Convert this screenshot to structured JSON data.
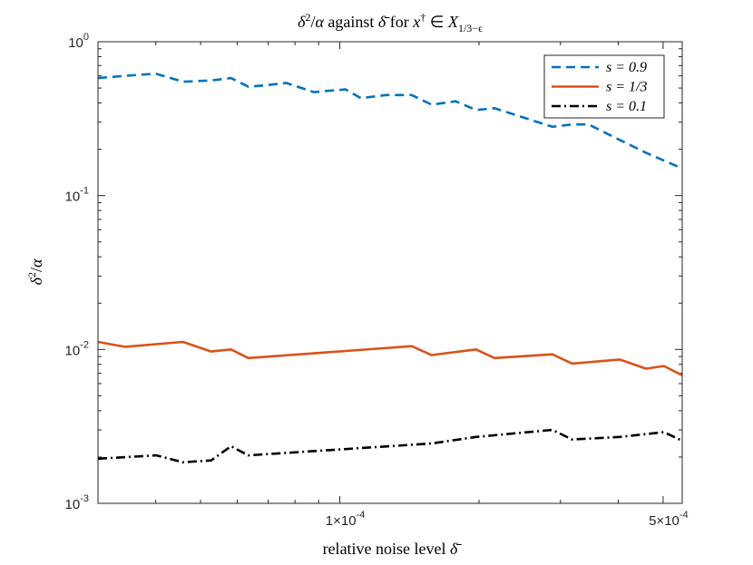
{
  "chart_data": {
    "type": "line",
    "title": "δ²/α against δ̄ for x† ∈ X1/3−ϵ",
    "xlabel": "relative noise level δ̄",
    "ylabel": "δ²/α",
    "xscale": "log",
    "yscale": "log",
    "xlim": [
      3e-05,
      0.00055
    ],
    "ylim": [
      0.001,
      1
    ],
    "x_ticks": [
      {
        "value": 0.0001,
        "label": "1×10",
        "exp": "-4"
      },
      {
        "value": 0.0005,
        "label": "5×10",
        "exp": "-4"
      }
    ],
    "y_ticks": [
      {
        "value": 1,
        "label": "10",
        "exp": "0"
      },
      {
        "value": 0.1,
        "label": "10",
        "exp": "-1"
      },
      {
        "value": 0.01,
        "label": "10",
        "exp": "-2"
      },
      {
        "value": 0.001,
        "label": "10",
        "exp": "-3"
      }
    ],
    "legend_position": "top-right",
    "series": [
      {
        "name": "s = 0.9",
        "color": "#0072BD",
        "style": "dashed",
        "x": [
          3e-05,
          3.43e-05,
          4e-05,
          4.58e-05,
          5.27e-05,
          5.82e-05,
          6.34e-05,
          6.87e-05,
          7.65e-05,
          8.79e-05,
          9.46e-05,
          0.000103,
          0.000111,
          0.000126,
          0.000143,
          0.000158,
          0.000178,
          0.000197,
          0.000216,
          0.000251,
          0.000288,
          0.000318,
          0.000345,
          0.000403,
          0.000459,
          0.00055
        ],
        "values": [
          0.58,
          0.6,
          0.62,
          0.55,
          0.56,
          0.58,
          0.51,
          0.52,
          0.54,
          0.47,
          0.48,
          0.49,
          0.43,
          0.45,
          0.45,
          0.39,
          0.41,
          0.36,
          0.37,
          0.32,
          0.28,
          0.29,
          0.29,
          0.23,
          0.19,
          0.15
        ]
      },
      {
        "name": "s = 1/3",
        "color": "#D95319",
        "style": "solid",
        "x": [
          3e-05,
          3.43e-05,
          4.58e-05,
          5.27e-05,
          5.82e-05,
          6.34e-05,
          0.000143,
          0.000158,
          0.000197,
          0.000216,
          0.000288,
          0.000318,
          0.000403,
          0.000459,
          0.000502,
          0.00055
        ],
        "values": [
          0.0112,
          0.0104,
          0.0112,
          0.0097,
          0.01,
          0.0088,
          0.0105,
          0.0092,
          0.01,
          0.0088,
          0.0093,
          0.0081,
          0.0086,
          0.0075,
          0.0078,
          0.0068
        ]
      },
      {
        "name": "s = 0.1",
        "color": "#000000",
        "style": "dashdot",
        "x": [
          3e-05,
          4.01e-05,
          4.58e-05,
          5.27e-05,
          5.82e-05,
          6.34e-05,
          0.000158,
          0.000197,
          0.000288,
          0.000318,
          0.000403,
          0.000502,
          0.00055
        ],
        "values": [
          0.00195,
          0.00205,
          0.00185,
          0.0019,
          0.00235,
          0.00205,
          0.00245,
          0.0027,
          0.003,
          0.0026,
          0.0027,
          0.0029,
          0.00255
        ]
      }
    ]
  }
}
